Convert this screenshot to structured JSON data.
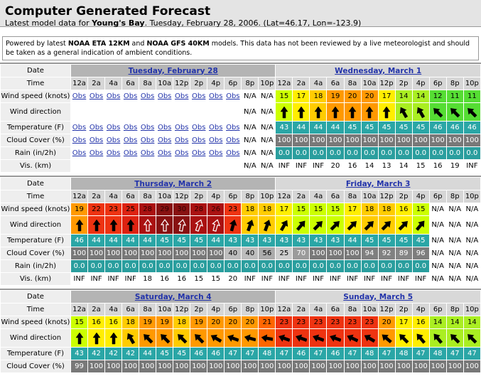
{
  "header": {
    "title": "Computer Generated Forecast",
    "subtitle": {
      "before": "Latest model data for ",
      "place": "Young's Bay",
      "after": ". Tuesday, February 28, 2006. (Lat=46.17, Lon=-123.9)"
    }
  },
  "note": {
    "before": "Powered by latest ",
    "model1": "NOAA ETA 12KM",
    "mid": " and ",
    "model2": "NOAA GFS 40KM",
    "after": " models. This data has not been reviewed by a live meteorologist and should be taken as a general indication of ambient conditions."
  },
  "blocks": [
    {
      "date_label": "Date",
      "time_label": "Time",
      "days": [
        "Tuesday, February 28",
        "Wednesday, March 1"
      ],
      "times": [
        "12a",
        "2a",
        "4a",
        "6a",
        "8a",
        "10a",
        "12p",
        "2p",
        "4p",
        "6p",
        "8p",
        "10p",
        "12a",
        "2a",
        "4a",
        "6a",
        "8a",
        "10a",
        "12p",
        "2p",
        "4p",
        "6p",
        "8p",
        "10p"
      ],
      "rows": [
        {
          "label": "Wind speed (knots)",
          "cells": [
            "Obs",
            "Obs",
            "Obs",
            "Obs",
            "Obs",
            "Obs",
            "Obs",
            "Obs",
            "Obs",
            "Obs",
            "N/A",
            "N/A",
            15,
            17,
            18,
            19,
            20,
            20,
            17,
            14,
            14,
            12,
            11,
            11
          ]
        },
        {
          "label": "Wind direction",
          "cells": [
            null,
            null,
            null,
            null,
            null,
            null,
            null,
            null,
            null,
            null,
            "N/A",
            "N/A",
            0,
            0,
            0,
            0,
            0,
            0,
            0,
            -30,
            -30,
            -45,
            -45,
            -45
          ]
        },
        {
          "label": "Temperature (F)",
          "cells": [
            "Obs",
            "Obs",
            "Obs",
            "Obs",
            "Obs",
            "Obs",
            "Obs",
            "Obs",
            "Obs",
            "Obs",
            "N/A",
            "N/A",
            43,
            44,
            44,
            44,
            45,
            45,
            45,
            45,
            45,
            46,
            46,
            46
          ]
        },
        {
          "label": "Cloud Cover (%)",
          "cells": [
            "Obs",
            "Obs",
            "Obs",
            "Obs",
            "Obs",
            "Obs",
            "Obs",
            "Obs",
            "Obs",
            "Obs",
            "N/A",
            "N/A",
            100,
            100,
            100,
            100,
            100,
            100,
            100,
            100,
            100,
            100,
            100,
            100
          ]
        },
        {
          "label": "Rain (in/2h)",
          "cells": [
            "Obs",
            "Obs",
            "Obs",
            "Obs",
            "Obs",
            "Obs",
            "Obs",
            "Obs",
            "Obs",
            "Obs",
            "N/A",
            "N/A",
            "0.0",
            "0.0",
            "0.0",
            "0.0",
            "0.0",
            "0.0",
            "0.0",
            "0.0",
            "0.0",
            "0.0",
            "0.0",
            "0.0"
          ]
        },
        {
          "label": "Vis. (km)",
          "cells": [
            null,
            null,
            null,
            null,
            null,
            null,
            null,
            null,
            null,
            null,
            "N/A",
            "N/A",
            "INF",
            "INF",
            "INF",
            20,
            16,
            14,
            13,
            14,
            15,
            16,
            19,
            "INF"
          ]
        }
      ]
    },
    {
      "date_label": "Date",
      "time_label": "Time",
      "days": [
        "Thursday, March 2",
        "Friday, March 3"
      ],
      "times": [
        "12a",
        "2a",
        "4a",
        "6a",
        "8a",
        "10a",
        "12p",
        "2p",
        "4p",
        "6p",
        "8p",
        "10p",
        "12a",
        "2a",
        "4a",
        "6a",
        "8a",
        "10a",
        "12p",
        "2p",
        "4p",
        "6p",
        "8p",
        "10p"
      ],
      "rows": [
        {
          "label": "Wind speed (knots)",
          "cells": [
            19,
            22,
            23,
            25,
            28,
            29,
            30,
            28,
            26,
            23,
            18,
            18,
            17,
            15,
            15,
            15,
            17,
            18,
            18,
            16,
            15,
            "N/A",
            "N/A",
            "N/A"
          ]
        },
        {
          "label": "Wind direction",
          "cells": [
            0,
            0,
            0,
            0,
            0,
            0,
            10,
            20,
            15,
            15,
            20,
            20,
            30,
            40,
            45,
            45,
            45,
            45,
            45,
            45,
            40,
            "N/A",
            "N/A",
            "N/A"
          ]
        },
        {
          "label": "Temperature (F)",
          "cells": [
            46,
            44,
            44,
            44,
            44,
            45,
            45,
            45,
            44,
            43,
            43,
            43,
            43,
            43,
            43,
            43,
            44,
            45,
            45,
            45,
            45,
            "N/A",
            "N/A",
            "N/A"
          ]
        },
        {
          "label": "Cloud Cover (%)",
          "cells": [
            100,
            100,
            100,
            100,
            100,
            100,
            100,
            100,
            100,
            40,
            40,
            56,
            25,
            70,
            100,
            100,
            100,
            94,
            92,
            89,
            96,
            "N/A",
            "N/A",
            "N/A"
          ]
        },
        {
          "label": "Rain (in/2h)",
          "cells": [
            "0.0",
            "0.0",
            "0.0",
            "0.0",
            "0.0",
            "0.0",
            "0.0",
            "0.0",
            "0.0",
            "0.0",
            "0.0",
            "0.0",
            "0.0",
            "0.0",
            "0.0",
            "0.0",
            "0.0",
            "0.0",
            "0.0",
            "0.0",
            "0.0",
            "N/A",
            "N/A",
            "N/A"
          ]
        },
        {
          "label": "Vis. (km)",
          "cells": [
            "INF",
            "INF",
            "INF",
            "INF",
            18,
            16,
            16,
            15,
            15,
            20,
            "INF",
            "INF",
            "INF",
            "INF",
            "INF",
            "INF",
            "INF",
            "INF",
            "INF",
            "INF",
            "INF",
            "N/A",
            "N/A",
            "N/A"
          ]
        }
      ]
    },
    {
      "date_label": "Date",
      "time_label": "Time",
      "days": [
        "Saturday, March 4",
        "Sunday, March 5"
      ],
      "times": [
        "12a",
        "2a",
        "4a",
        "6a",
        "8a",
        "10a",
        "12p",
        "2p",
        "4p",
        "6p",
        "8p",
        "10p",
        "12a",
        "2a",
        "4a",
        "6a",
        "8a",
        "10a",
        "12p",
        "2p",
        "4p",
        "6p",
        "8p",
        "10p"
      ],
      "rows": [
        {
          "label": "Wind speed (knots)",
          "cells": [
            15,
            16,
            16,
            18,
            19,
            19,
            18,
            19,
            20,
            20,
            20,
            21,
            23,
            23,
            23,
            23,
            23,
            23,
            20,
            17,
            16,
            14,
            14,
            14
          ]
        },
        {
          "label": "Wind direction",
          "cells": [
            0,
            0,
            0,
            -30,
            -45,
            -45,
            -45,
            -45,
            -60,
            -70,
            -75,
            -80,
            -70,
            -70,
            -70,
            -70,
            -65,
            -60,
            -50,
            -45,
            -40,
            -40,
            -45,
            -45
          ]
        },
        {
          "label": "Temperature (F)",
          "cells": [
            43,
            42,
            42,
            42,
            44,
            45,
            45,
            46,
            46,
            47,
            47,
            48,
            47,
            46,
            47,
            46,
            47,
            48,
            47,
            48,
            47,
            48,
            47,
            47
          ]
        },
        {
          "label": "Cloud Cover (%)",
          "cells": [
            99,
            100,
            100,
            100,
            100,
            100,
            100,
            100,
            100,
            100,
            100,
            100,
            100,
            100,
            100,
            100,
            100,
            100,
            100,
            100,
            100,
            100,
            100,
            100
          ]
        }
      ]
    }
  ]
}
